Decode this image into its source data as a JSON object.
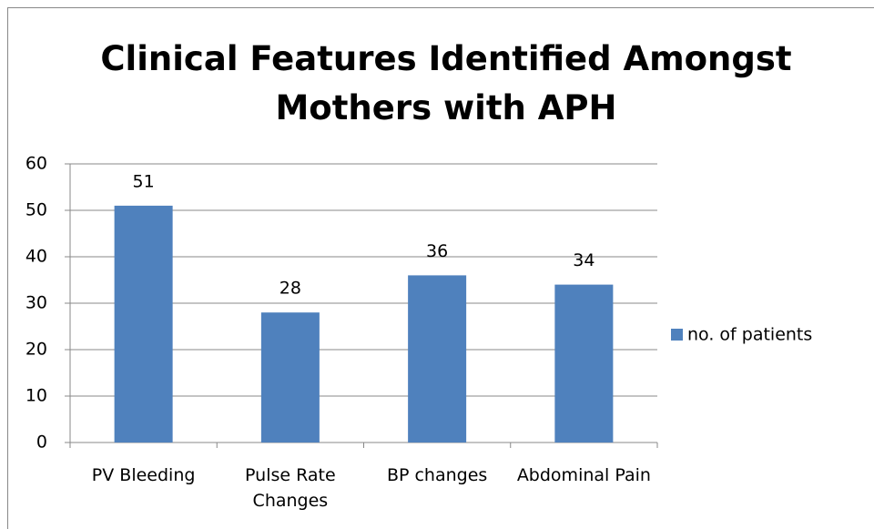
{
  "chart_data": {
    "type": "bar",
    "title": "Clinical Features Identified Amongst Mothers with APH",
    "categories": [
      "PV Bleeding",
      "Pulse Rate Changes",
      "BP changes",
      "Abdominal Pain"
    ],
    "series": [
      {
        "name": "no. of patients",
        "color": "#4f81bd",
        "values": [
          51,
          28,
          36,
          34
        ]
      }
    ],
    "ylim": [
      0,
      60
    ],
    "yticks": [
      0,
      10,
      20,
      30,
      40,
      50,
      60
    ],
    "grid": true,
    "legend": "right"
  }
}
